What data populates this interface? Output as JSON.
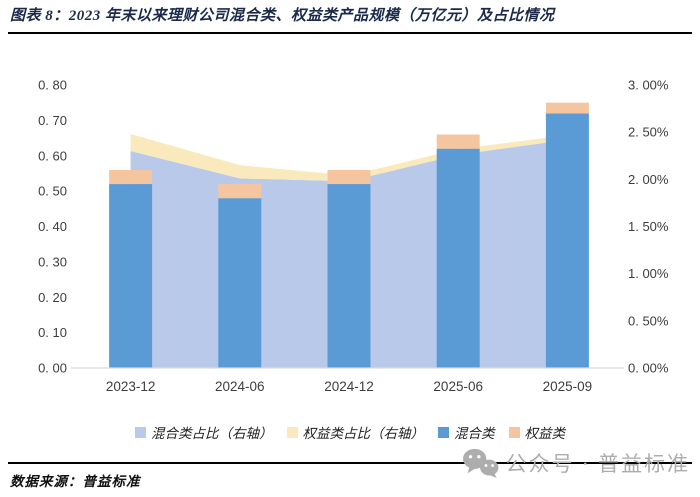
{
  "page": {
    "title": "图表 8：2023 年末以来理财公司混合类、权益类产品规模（万亿元）及占比情况",
    "source_note": "数据来源：普益标准",
    "watermark_text": "公众号 · 普益标准",
    "watermark_icon": "wechat-icon"
  },
  "colors": {
    "title_text": "#1b2a4a",
    "rule": "#000000",
    "axis_text": "#3d3d3d",
    "axis_baseline": "#d9d9d9",
    "bar_mixed": "#5b9bd5",
    "bar_equity": "#f5c5a0",
    "area_mixed_ratio": "#b9c9e9",
    "area_equity_ratio": "#fae9bc",
    "watermark": "#adadad",
    "source_text": "#111111"
  },
  "chart_data": {
    "type": "combo: stacked bar (left axis) + stacked area (right axis)",
    "categories": [
      "2023-12",
      "2024-06",
      "2024-12",
      "2025-06",
      "2025-09"
    ],
    "series": [
      {
        "name": "混合类占比（右轴）",
        "render": "area-stacked",
        "axis": "right",
        "unit": "%",
        "values": [
          2.3,
          2.01,
          1.98,
          2.26,
          2.42
        ]
      },
      {
        "name": "权益类占比（右轴）",
        "render": "area-stacked",
        "axis": "right",
        "unit": "%",
        "values": [
          0.18,
          0.14,
          0.06,
          0.06,
          0.05
        ]
      },
      {
        "name": "混合类",
        "render": "bar-stacked",
        "axis": "left",
        "unit": "万亿元",
        "values": [
          0.52,
          0.48,
          0.52,
          0.62,
          0.72
        ]
      },
      {
        "name": "权益类",
        "render": "bar-stacked",
        "axis": "left",
        "unit": "万亿元",
        "values": [
          0.04,
          0.04,
          0.04,
          0.04,
          0.03
        ]
      }
    ],
    "left_axis": {
      "min": 0,
      "max": 0.8,
      "tick_labels": [
        "0. 00",
        "0. 10",
        "0. 20",
        "0. 30",
        "0. 40",
        "0. 50",
        "0. 60",
        "0. 70",
        "0. 80"
      ]
    },
    "right_axis": {
      "min": 0,
      "max": 3.0,
      "tick_labels": [
        "0. 00%",
        "0. 50%",
        "1. 00%",
        "1. 50%",
        "2. 00%",
        "2. 50%",
        "3. 00%"
      ]
    },
    "legend": [
      "混合类占比（右轴）",
      "权益类占比（右轴）",
      "混合类",
      "权益类"
    ],
    "legend_position": "bottom",
    "grid": false
  }
}
